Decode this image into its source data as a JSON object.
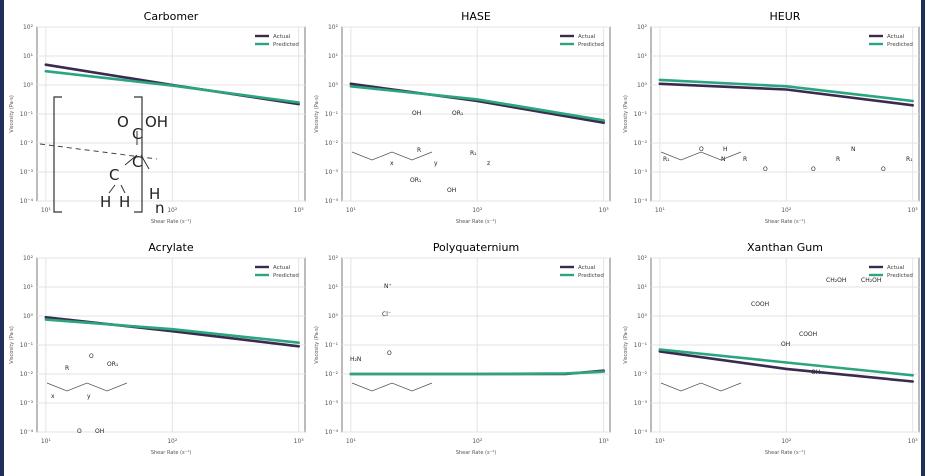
{
  "chart_data": [
    {
      "type": "line",
      "title": "Carbomer",
      "xlabel": "Shear Rate (s⁻¹)",
      "ylabel": "Viscosity (Pa·s)",
      "xscale": "log",
      "yscale": "log",
      "xlim": [
        10,
        1000
      ],
      "ylim": [
        0.0001,
        100
      ],
      "grid": true,
      "legend": "top-right",
      "x": [
        10,
        100,
        1000
      ],
      "series": [
        {
          "name": "Actual",
          "color": "#3b2a4f",
          "values": [
            5,
            1.0,
            0.22
          ]
        },
        {
          "name": "Predicted",
          "color": "#2aa57f",
          "values": [
            3,
            0.95,
            0.25
          ]
        }
      ],
      "structure_labels": [
        "O",
        "C",
        "OH",
        "C",
        "C",
        "H",
        "H",
        "H",
        "n"
      ]
    },
    {
      "type": "line",
      "title": "HASE",
      "xlabel": "Shear Rate (s⁻¹)",
      "ylabel": "Viscosity (Pa·s)",
      "xscale": "log",
      "yscale": "log",
      "xlim": [
        10,
        1000
      ],
      "ylim": [
        0.0001,
        100
      ],
      "grid": true,
      "legend": "top-right",
      "x": [
        10,
        100,
        1000
      ],
      "series": [
        {
          "name": "Actual",
          "color": "#3b2a4f",
          "values": [
            1.1,
            0.28,
            0.05
          ]
        },
        {
          "name": "Predicted",
          "color": "#2aa57f",
          "values": [
            0.9,
            0.32,
            0.06
          ]
        }
      ],
      "structure_labels": [
        "OH",
        "OR₁",
        "OR₁",
        "R",
        "R₁",
        "OH",
        "x",
        "y",
        "z"
      ]
    },
    {
      "type": "line",
      "title": "HEUR",
      "xlabel": "Shear Rate (s⁻¹)",
      "ylabel": "Viscosity (Pa·s)",
      "xscale": "log",
      "yscale": "log",
      "xlim": [
        10,
        1000
      ],
      "ylim": [
        0.0001,
        100
      ],
      "grid": true,
      "legend": "top-right",
      "x": [
        10,
        100,
        1000
      ],
      "series": [
        {
          "name": "Actual",
          "color": "#3b2a4f",
          "values": [
            1.1,
            0.7,
            0.2
          ]
        },
        {
          "name": "Predicted",
          "color": "#2aa57f",
          "values": [
            1.5,
            0.9,
            0.28
          ]
        }
      ],
      "structure_labels": [
        "R₁",
        "O",
        "N",
        "H",
        "R",
        "O",
        "O",
        "R",
        "N",
        "O",
        "R₁"
      ]
    },
    {
      "type": "line",
      "title": "Acrylate",
      "xlabel": "Shear Rate (s⁻¹)",
      "ylabel": "Viscosity (Pa·s)",
      "xscale": "log",
      "yscale": "log",
      "xlim": [
        10,
        1000
      ],
      "ylim": [
        0.0001,
        100
      ],
      "grid": true,
      "legend": "top-right",
      "x": [
        10,
        100,
        1000
      ],
      "series": [
        {
          "name": "Actual",
          "color": "#3b2a4f",
          "values": [
            0.9,
            0.3,
            0.09
          ]
        },
        {
          "name": "Predicted",
          "color": "#2aa57f",
          "values": [
            0.75,
            0.35,
            0.12
          ]
        }
      ],
      "structure_labels": [
        "OR₁",
        "R",
        "x",
        "y",
        "OH",
        "O",
        "O"
      ]
    },
    {
      "type": "line",
      "title": "Polyquaternium",
      "xlabel": "Shear Rate (s⁻¹)",
      "ylabel": "Viscosity (Pa·s)",
      "xscale": "log",
      "yscale": "log",
      "xlim": [
        10,
        1000
      ],
      "ylim": [
        0.0001,
        100
      ],
      "grid": true,
      "legend": "top-right",
      "x": [
        10,
        100,
        500,
        1000
      ],
      "series": [
        {
          "name": "Actual",
          "color": "#3b2a4f",
          "values": [
            0.01,
            0.01,
            0.01,
            0.013
          ]
        },
        {
          "name": "Predicted",
          "color": "#2aa57f",
          "values": [
            0.01,
            0.01,
            0.0105,
            0.012
          ]
        }
      ],
      "structure_labels": [
        "N⁺",
        "Cl⁻",
        "H₂N",
        "O"
      ]
    },
    {
      "type": "line",
      "title": "Xanthan Gum",
      "xlabel": "Shear Rate (s⁻¹)",
      "ylabel": "Viscosity (Pa·s)",
      "xscale": "log",
      "yscale": "log",
      "xlim": [
        10,
        1000
      ],
      "ylim": [
        0.0001,
        100
      ],
      "grid": true,
      "legend": "top-right",
      "x": [
        10,
        100,
        1000
      ],
      "series": [
        {
          "name": "Actual",
          "color": "#3b2a4f",
          "values": [
            0.06,
            0.015,
            0.0055
          ]
        },
        {
          "name": "Predicted",
          "color": "#2aa57f",
          "values": [
            0.07,
            0.025,
            0.009
          ]
        }
      ],
      "structure_labels": [
        "CH₂OH",
        "CH₂OH",
        "COOH",
        "COOH",
        "OH",
        "OH"
      ]
    }
  ],
  "tick_labels": {
    "x": [
      "10¹",
      "10²",
      "10³"
    ],
    "y": [
      "10²",
      "10¹",
      "10⁰",
      "10⁻¹",
      "10⁻²",
      "10⁻³",
      "10⁻⁴"
    ]
  }
}
